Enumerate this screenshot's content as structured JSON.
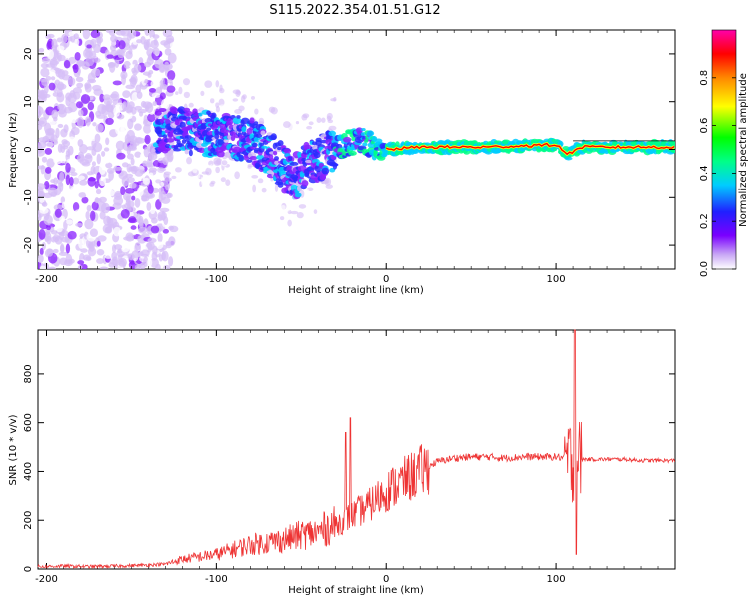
{
  "title": "S115.2022.354.01.51.G12",
  "chart_data": [
    {
      "type": "heatmap",
      "title": "S115.2022.354.01.51.G12",
      "xlabel": "Height of straight line (km)",
      "ylabel": "Frequency (Hz)",
      "xlim": [
        -205,
        170
      ],
      "ylim": [
        -25,
        25
      ],
      "x_ticks": [
        -200,
        -100,
        0,
        100
      ],
      "y_ticks": [
        -20,
        -10,
        0,
        10,
        20
      ],
      "colorbar": {
        "label": "Normalized spectral amplitude",
        "range": [
          0,
          1
        ],
        "ticks": [
          0.0,
          0.2,
          0.4,
          0.6,
          0.8
        ],
        "tick_labels": [
          "0.0",
          "0.2",
          "0.4",
          "0.6",
          "0.8"
        ],
        "colors": [
          "#ffffff",
          "#c9a8f5",
          "#7a00ff",
          "#2020ff",
          "#00ffff",
          "#00ff00",
          "#ffff00",
          "#ff8800",
          "#ff0000",
          "#ff00aa"
        ]
      },
      "ridge": [
        {
          "x": -135,
          "y": 4
        },
        {
          "x": -120,
          "y": 4
        },
        {
          "x": -100,
          "y": 3
        },
        {
          "x": -80,
          "y": 2
        },
        {
          "x": -65,
          "y": -2
        },
        {
          "x": -55,
          "y": -6
        },
        {
          "x": -45,
          "y": -3
        },
        {
          "x": -35,
          "y": -1
        },
        {
          "x": -25,
          "y": 1
        },
        {
          "x": -15,
          "y": 2
        },
        {
          "x": -8,
          "y": 1
        },
        {
          "x": 0,
          "y": 0
        },
        {
          "x": 20,
          "y": 0.5
        },
        {
          "x": 60,
          "y": 0.5
        },
        {
          "x": 100,
          "y": 1
        },
        {
          "x": 107,
          "y": -1
        },
        {
          "x": 115,
          "y": 0.5
        },
        {
          "x": 170,
          "y": 0.5
        }
      ],
      "noise_region_x": [
        -205,
        -135
      ]
    },
    {
      "type": "line",
      "xlabel": "Height of straight line (km)",
      "ylabel": "SNR (10 * v/v)",
      "xlim": [
        -205,
        170
      ],
      "ylim": [
        0,
        980
      ],
      "x_ticks": [
        -200,
        -100,
        0,
        100
      ],
      "y_ticks": [
        0,
        200,
        400,
        600,
        800
      ],
      "color": "#ee3333",
      "x": [
        -205,
        -190,
        -175,
        -160,
        -145,
        -130,
        -120,
        -110,
        -100,
        -90,
        -80,
        -70,
        -60,
        -50,
        -40,
        -35,
        -30,
        -25,
        -20,
        -15,
        -10,
        -5,
        0,
        5,
        10,
        15,
        20,
        25,
        30,
        40,
        50,
        60,
        70,
        80,
        90,
        100,
        105,
        108,
        110,
        111,
        112,
        114,
        118,
        130,
        140,
        150,
        160,
        170
      ],
      "y": [
        10,
        12,
        10,
        12,
        15,
        20,
        40,
        50,
        60,
        80,
        100,
        110,
        120,
        140,
        150,
        170,
        180,
        200,
        220,
        240,
        260,
        290,
        320,
        340,
        360,
        380,
        400,
        420,
        440,
        455,
        460,
        460,
        455,
        460,
        460,
        460,
        455,
        450,
        440,
        450,
        455,
        450,
        450,
        450,
        450,
        445,
        445,
        445
      ],
      "spikes": [
        {
          "x": -21,
          "y": 620
        },
        {
          "x": -24,
          "y": 560
        },
        {
          "x": 111,
          "y": 980
        },
        {
          "x": 112,
          "y": 60
        }
      ]
    }
  ]
}
